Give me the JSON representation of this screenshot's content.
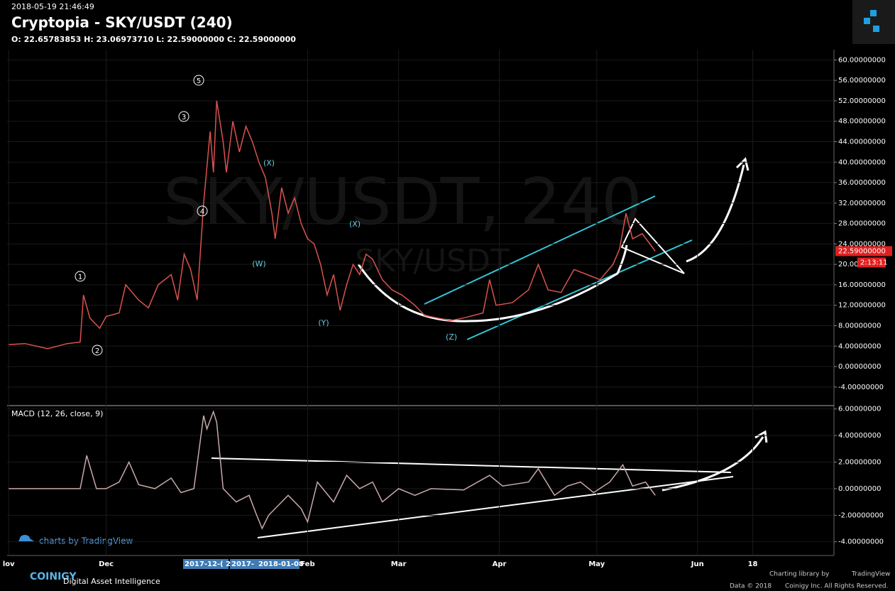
{
  "header": {
    "timestamp": "2018-05-19 21:46:49",
    "title": "Cryptopia - SKY/USDT (240)",
    "ohlc": "O: 22.65783853 H: 23.06973710 L: 22.59000000 C: 22.59000000",
    "watermark": "SKY/USDT, 240",
    "watermark2": "SKY/USDT",
    "branding": "charts by TradingView"
  },
  "chart_data": [
    {
      "type": "line",
      "color": "#d9534f",
      "x": [
        0,
        5,
        12,
        18,
        22,
        23,
        25,
        28,
        30,
        34,
        36,
        40,
        43,
        46,
        50,
        52,
        54,
        56,
        58,
        60,
        62,
        63,
        64,
        66,
        67,
        69,
        71,
        73,
        75,
        77,
        79,
        81,
        82,
        84,
        86,
        88,
        90,
        92,
        94,
        96,
        98,
        100,
        102,
        104,
        106,
        108,
        110,
        112,
        115,
        118,
        121,
        125,
        128,
        132,
        136,
        140,
        146,
        148,
        150,
        155,
        160,
        163,
        166,
        170,
        174,
        178,
        182,
        186,
        188,
        190,
        192,
        195,
        199
      ],
      "values": [
        4.3,
        4.5,
        3.5,
        4.5,
        4.8,
        14,
        9.5,
        7.5,
        9.8,
        10.5,
        16,
        13,
        11.5,
        16,
        18,
        13,
        22,
        19,
        13,
        32,
        46,
        38,
        52,
        44,
        38,
        48,
        42,
        47,
        44,
        40,
        37,
        30,
        25,
        35,
        30,
        33,
        28,
        25,
        24,
        20,
        14,
        18,
        11,
        16,
        20,
        18,
        22,
        21,
        17,
        15,
        14,
        12,
        10,
        9.5,
        9,
        9.5,
        10.5,
        17,
        12,
        12.5,
        15,
        20,
        15,
        14.5,
        19,
        18,
        17,
        20,
        23,
        30,
        25,
        26,
        22.59
      ],
      "xlim": [
        -0.5,
        254
      ],
      "ylim": [
        -7.5,
        62
      ],
      "xticks": [
        {
          "value": 0,
          "label": "lov"
        },
        {
          "value": 30,
          "label": "Dec"
        },
        {
          "value": 92,
          "label": "Feb"
        },
        {
          "value": 120,
          "label": "Mar"
        },
        {
          "value": 151,
          "label": "Apr"
        },
        {
          "value": 181,
          "label": "May"
        },
        {
          "value": 212,
          "label": "Jun"
        },
        {
          "value": 229,
          "label": "18"
        }
      ],
      "yticks": [
        {
          "value": 60,
          "label": "60.00000000"
        },
        {
          "value": 56,
          "label": "56.00000000"
        },
        {
          "value": 52,
          "label": "52.00000000"
        },
        {
          "value": 48,
          "label": "48.00000000"
        },
        {
          "value": 44,
          "label": "44.00000000"
        },
        {
          "value": 40,
          "label": "40.00000000"
        },
        {
          "value": 36,
          "label": "36.00000000"
        },
        {
          "value": 32,
          "label": "32.00000000"
        },
        {
          "value": 28,
          "label": "28.00000000"
        },
        {
          "value": 24,
          "label": "24.00000000"
        },
        {
          "value": 20,
          "label": "20.00000000"
        },
        {
          "value": 16,
          "label": "16.00000000"
        },
        {
          "value": 12,
          "label": "12.00000000"
        },
        {
          "value": 8,
          "label": "8.00000000"
        },
        {
          "value": 4,
          "label": "4.00000000"
        },
        {
          "value": 0,
          "label": "0.00000000"
        },
        {
          "value": -4,
          "label": "-4.00000000"
        }
      ],
      "grid": true,
      "last_price": {
        "value": 22.59,
        "label": "22.59000000"
      },
      "countdown": "2:13:11",
      "annotations": [
        "1",
        "2",
        "3",
        "4",
        "5",
        "(X)",
        "(W)",
        "(Y)",
        "(X)",
        "(Z)"
      ],
      "highlighted_dates": [
        "2017-12-( 20",
        "2017- 2",
        "2018-01-08"
      ]
    },
    {
      "type": "line",
      "title": "MACD (12, 26, close, 9)",
      "color": "#c9a9a9",
      "x": [
        0,
        10,
        22,
        24,
        27,
        30,
        34,
        37,
        40,
        45,
        50,
        53,
        57,
        60,
        61,
        63,
        64,
        66,
        70,
        74,
        76,
        78,
        80,
        82,
        86,
        90,
        92,
        95,
        100,
        104,
        108,
        112,
        115,
        120,
        125,
        130,
        140,
        148,
        152,
        160,
        163,
        168,
        172,
        176,
        180,
        185,
        189,
        192,
        196,
        199
      ],
      "values": [
        0,
        0,
        0,
        2.5,
        0,
        0,
        0.5,
        2,
        0.3,
        0,
        0.8,
        -0.3,
        0,
        5.5,
        4.5,
        5.8,
        5,
        0,
        -1,
        -0.5,
        -1.8,
        -3,
        -2,
        -1.5,
        -0.5,
        -1.5,
        -2.5,
        0.5,
        -1,
        1,
        0,
        0.5,
        -1,
        0,
        -0.5,
        0,
        -0.1,
        1,
        0.2,
        0.5,
        1.5,
        -0.5,
        0.2,
        0.5,
        -0.3,
        0.5,
        1.8,
        0.2,
        0.5,
        -0.5
      ],
      "ylim": [
        -5.03,
        6.2
      ],
      "yticks": [
        {
          "value": 6,
          "label": "6.00000000"
        },
        {
          "value": 4,
          "label": "4.00000000"
        },
        {
          "value": 2,
          "label": "2.00000000"
        },
        {
          "value": 0,
          "label": "0.00000000"
        },
        {
          "value": -2,
          "label": "-2.00000000"
        },
        {
          "value": -4,
          "label": "-4.00000000"
        }
      ],
      "grid": true
    }
  ],
  "footer": {
    "brand": "COINIGY",
    "tagline": "Digital Asset Intelligence",
    "credit": "Charting library by",
    "credit_brand": "TradingView",
    "copyright": "Data © 2018",
    "rights": "Coinigy Inc. All Rights Reserved."
  }
}
